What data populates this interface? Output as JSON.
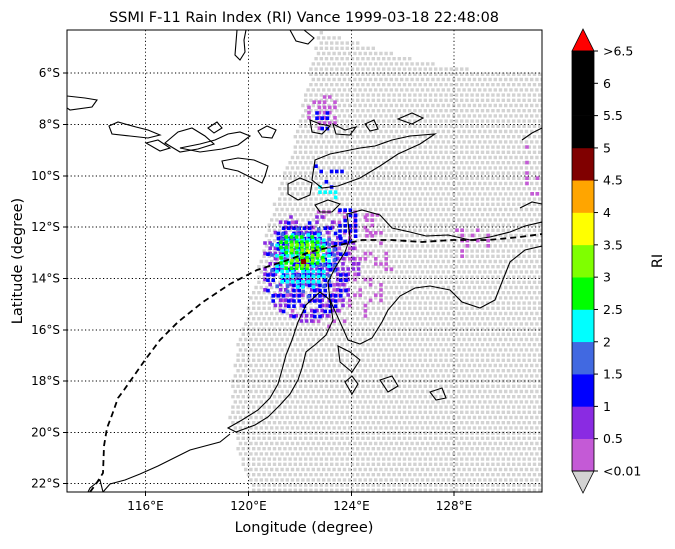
{
  "figure": {
    "title": "SSMI F-11 Rain Index (RI) Vance 1999-03-18 22:48:08",
    "xlabel": "Longitude (degree)",
    "ylabel": "Latitude (degree)",
    "colorbar_label": "RI"
  },
  "map": {
    "lon_ticks": [
      "116°E",
      "120°E",
      "124°E",
      "128°E"
    ],
    "lat_ticks": [
      "6°S",
      "8°S",
      "10°S",
      "12°S",
      "14°S",
      "16°S",
      "18°S",
      "20°S",
      "22°S"
    ],
    "swath_color": "#d3d3d3",
    "coast_color": "#000000",
    "track_style": "dashed black line"
  },
  "colorbar": {
    "levels": [
      {
        "label": "<0.01",
        "color": "#c45ad6"
      },
      {
        "label": "0.5",
        "color": "#8a2be2"
      },
      {
        "label": "1",
        "color": "#0000ff"
      },
      {
        "label": "1.5",
        "color": "#4169e1"
      },
      {
        "label": "2",
        "color": "#00ffff"
      },
      {
        "label": "2.5",
        "color": "#00ff00"
      },
      {
        "label": "3",
        "color": "#7fff00"
      },
      {
        "label": "3.5",
        "color": "#ffff00"
      },
      {
        "label": "4",
        "color": "#ffa500"
      },
      {
        "label": "4.5",
        "color": "#800000"
      },
      {
        "label": "5",
        "color": "#000000"
      },
      {
        "label": "5.5",
        "color": "#000000"
      },
      {
        "label": "6",
        "color": "#000000"
      },
      {
        "label": ">6.5",
        "color": "#ff0000"
      }
    ],
    "under_color": "#d3d3d3",
    "over_color": "#ff0000"
  }
}
